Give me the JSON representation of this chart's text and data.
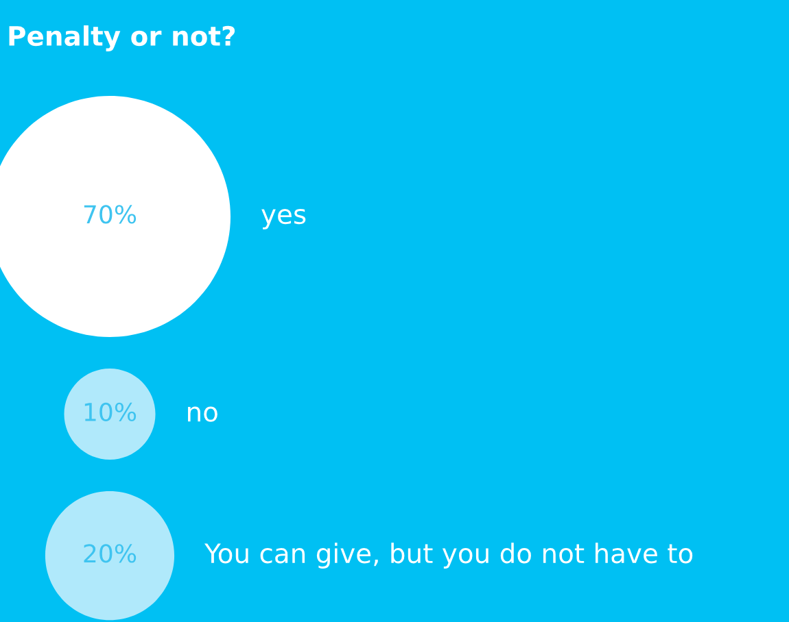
{
  "chart_data": {
    "type": "other",
    "title": "Penalty or not?",
    "categories": [
      "yes",
      "no",
      "You can give, but you do not have to"
    ],
    "values": [
      70,
      10,
      20
    ],
    "value_labels": [
      "70%",
      "10%",
      "20%"
    ],
    "colors": [
      "#ffffff",
      "#b0e9fb",
      "#b0e9fb"
    ]
  }
}
